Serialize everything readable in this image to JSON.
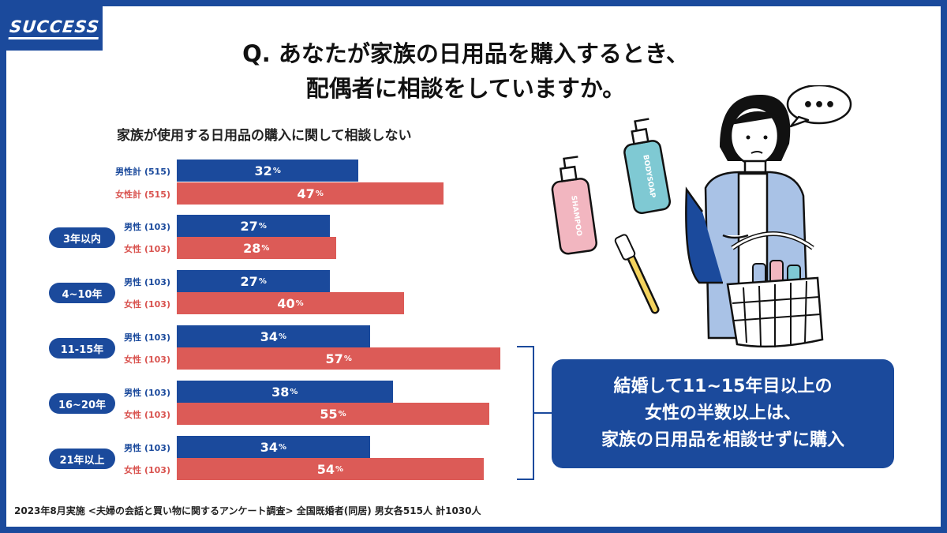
{
  "brand": {
    "logo_text": "SUCCESS"
  },
  "question": {
    "line1": "Q. あなたが家族の日用品を購入するとき、",
    "line2": "配偶者に相談をしていますか。"
  },
  "chart_data": {
    "type": "bar",
    "title": "家族が使用する日用品の購入に関して相談しない",
    "unit": "%",
    "rows": [
      {
        "group": "",
        "label": "男性計",
        "n": "(515)",
        "series": "male",
        "value": 32
      },
      {
        "group": "",
        "label": "女性計",
        "n": "(515)",
        "series": "female",
        "value": 47
      },
      {
        "group": "3年以内",
        "label": "男性",
        "n": "(103)",
        "series": "male",
        "value": 27
      },
      {
        "group": "3年以内",
        "label": "女性",
        "n": "(103)",
        "series": "female",
        "value": 28
      },
      {
        "group": "4~10年",
        "label": "男性",
        "n": "(103)",
        "series": "male",
        "value": 27
      },
      {
        "group": "4~10年",
        "label": "女性",
        "n": "(103)",
        "series": "female",
        "value": 40
      },
      {
        "group": "11-15年",
        "label": "男性",
        "n": "(103)",
        "series": "male",
        "value": 34
      },
      {
        "group": "11-15年",
        "label": "女性",
        "n": "(103)",
        "series": "female",
        "value": 57
      },
      {
        "group": "16~20年",
        "label": "男性",
        "n": "(103)",
        "series": "male",
        "value": 38
      },
      {
        "group": "16~20年",
        "label": "女性",
        "n": "(103)",
        "series": "female",
        "value": 55
      },
      {
        "group": "21年以上",
        "label": "男性",
        "n": "(103)",
        "series": "male",
        "value": 34
      },
      {
        "group": "21年以上",
        "label": "女性",
        "n": "(103)",
        "series": "female",
        "value": 54
      }
    ],
    "groups": [
      "3年以内",
      "4~10年",
      "11-15年",
      "16~20年",
      "21年以上"
    ],
    "colors": {
      "male": "#1b4a9c",
      "female": "#dc5b57"
    }
  },
  "callout": {
    "line1": "結婚して11~15年目以上の",
    "line2": "女性の半数以上は、",
    "line3": "家族の日用品を相談せずに購入"
  },
  "illustration": {
    "speech_bubble": "•••",
    "bottle_labels": [
      "SHAMPOO",
      "BODYSOAP"
    ]
  },
  "footnote": "2023年8月実施 <夫婦の会話と買い物に関するアンケート調査> 全国既婚者(同居) 男女各515人 計1030人"
}
